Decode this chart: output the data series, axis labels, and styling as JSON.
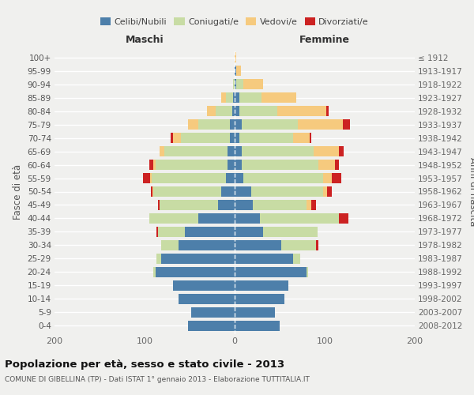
{
  "age_groups": [
    "0-4",
    "5-9",
    "10-14",
    "15-19",
    "20-24",
    "25-29",
    "30-34",
    "35-39",
    "40-44",
    "45-49",
    "50-54",
    "55-59",
    "60-64",
    "65-69",
    "70-74",
    "75-79",
    "80-84",
    "85-89",
    "90-94",
    "95-99",
    "100+"
  ],
  "birth_years": [
    "2008-2012",
    "2003-2007",
    "1998-2002",
    "1993-1997",
    "1988-1992",
    "1983-1987",
    "1978-1982",
    "1973-1977",
    "1968-1972",
    "1963-1967",
    "1958-1962",
    "1953-1957",
    "1948-1952",
    "1943-1947",
    "1938-1942",
    "1933-1937",
    "1928-1932",
    "1923-1927",
    "1918-1922",
    "1913-1917",
    "≤ 1912"
  ],
  "colors": {
    "celibi": "#4d7faa",
    "coniugati": "#c8dca4",
    "vedovi": "#f6ca7e",
    "divorziati": "#cc2222",
    "background": "#f0f0ee",
    "grid": "#ffffff"
  },
  "maschi": {
    "celibi": [
      52,
      48,
      62,
      68,
      88,
      82,
      62,
      55,
      40,
      18,
      15,
      10,
      8,
      8,
      5,
      5,
      3,
      2,
      0,
      0,
      0
    ],
    "coniugati": [
      0,
      0,
      0,
      0,
      2,
      5,
      20,
      30,
      55,
      65,
      75,
      82,
      80,
      70,
      55,
      35,
      18,
      8,
      2,
      0,
      0
    ],
    "vedovi": [
      0,
      0,
      0,
      0,
      0,
      0,
      0,
      0,
      0,
      0,
      1,
      2,
      2,
      5,
      8,
      12,
      10,
      5,
      0,
      0,
      0
    ],
    "divorziati": [
      0,
      0,
      0,
      0,
      0,
      0,
      0,
      2,
      0,
      2,
      2,
      8,
      5,
      0,
      3,
      0,
      0,
      0,
      0,
      0,
      0
    ]
  },
  "femmine": {
    "celibi": [
      50,
      45,
      55,
      60,
      80,
      65,
      52,
      32,
      28,
      20,
      18,
      10,
      8,
      8,
      5,
      8,
      5,
      5,
      2,
      2,
      0
    ],
    "coniugati": [
      0,
      0,
      0,
      0,
      2,
      8,
      38,
      60,
      88,
      60,
      80,
      88,
      85,
      80,
      60,
      62,
      42,
      25,
      8,
      0,
      0
    ],
    "vedovi": [
      0,
      0,
      0,
      0,
      0,
      0,
      0,
      0,
      0,
      5,
      5,
      10,
      18,
      28,
      18,
      50,
      55,
      38,
      22,
      5,
      2
    ],
    "divorziati": [
      0,
      0,
      0,
      0,
      0,
      0,
      3,
      0,
      10,
      5,
      5,
      10,
      5,
      5,
      2,
      8,
      2,
      0,
      0,
      0,
      0
    ]
  },
  "title": "Popolazione per età, sesso e stato civile - 2013",
  "subtitle": "COMUNE DI GIBELLINA (TP) - Dati ISTAT 1° gennaio 2013 - Elaborazione TUTTITALIA.IT",
  "ylabel_left": "Fasce di età",
  "ylabel_right": "Anni di nascita",
  "header_maschi": "Maschi",
  "header_femmine": "Femmine",
  "xlim": 200,
  "legend": [
    "Celibi/Nubili",
    "Coniugati/e",
    "Vedovi/e",
    "Divorziati/e"
  ]
}
